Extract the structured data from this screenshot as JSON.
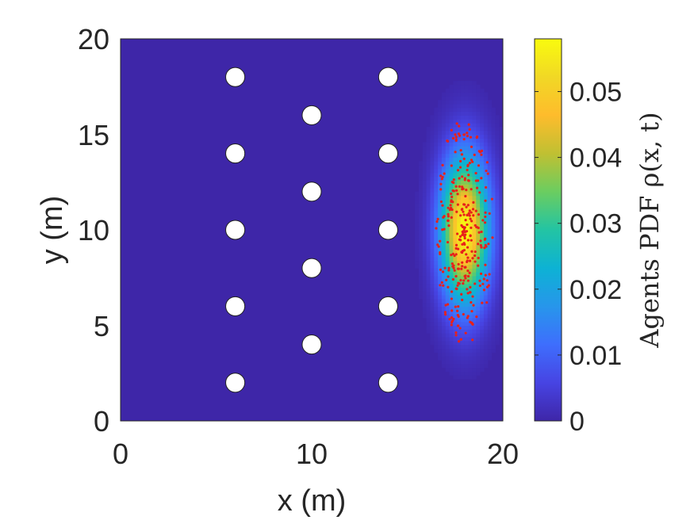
{
  "chart_data": {
    "type": "heatmap",
    "title": "",
    "xlabel": "x (m)",
    "ylabel": "y (m)",
    "xlim": [
      0,
      20
    ],
    "ylim": [
      0,
      20
    ],
    "x_ticks": [
      "0",
      "10",
      "20"
    ],
    "y_ticks": [
      "0",
      "5",
      "10",
      "15",
      "20"
    ],
    "grid": false,
    "background_color": "#3e26a8",
    "density": {
      "center": [
        18,
        10
      ],
      "sigma_x": 0.85,
      "sigma_y": 2.6,
      "peak": 0.058
    },
    "obstacles": [
      {
        "x": 6,
        "y": 18
      },
      {
        "x": 6,
        "y": 14
      },
      {
        "x": 6,
        "y": 10
      },
      {
        "x": 6,
        "y": 6
      },
      {
        "x": 6,
        "y": 2
      },
      {
        "x": 10,
        "y": 16
      },
      {
        "x": 10,
        "y": 12
      },
      {
        "x": 10,
        "y": 8
      },
      {
        "x": 10,
        "y": 4
      },
      {
        "x": 14,
        "y": 18
      },
      {
        "x": 14,
        "y": 14
      },
      {
        "x": 14,
        "y": 10
      },
      {
        "x": 14,
        "y": 6
      },
      {
        "x": 14,
        "y": 2
      }
    ],
    "obstacle_radius": 0.5,
    "agents": {
      "count": 320,
      "center": [
        18,
        10
      ],
      "spread_x": 1.5,
      "spread_y": 6.0,
      "color": "#e8201a"
    },
    "colorbar": {
      "label": "Agents PDF ρ(x, t)",
      "range": [
        0,
        0.058
      ],
      "ticks": [
        "0",
        "0.01",
        "0.02",
        "0.03",
        "0.04",
        "0.05"
      ],
      "colormap": "parula"
    }
  }
}
